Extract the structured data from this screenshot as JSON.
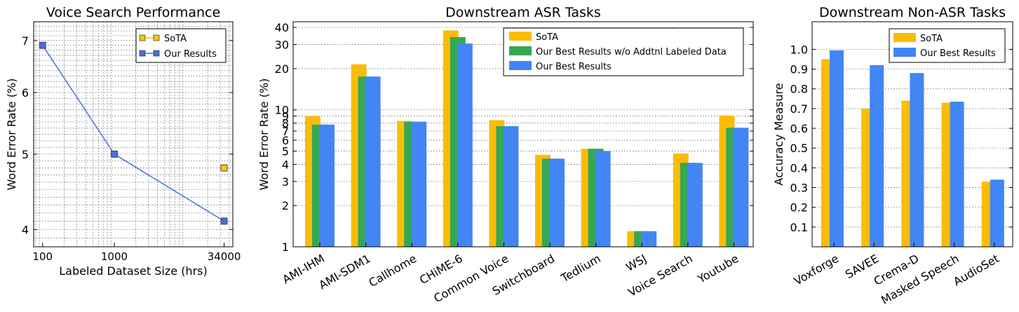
{
  "chart_data": [
    {
      "type": "line",
      "title": "Voice Search Performance",
      "xlabel": "Labeled Dataset Size (hrs)",
      "ylabel": "Word Error Rate (%)",
      "x_scale": "log",
      "y_scale": "log",
      "xlim": [
        75,
        45000
      ],
      "ylim": [
        3.8,
        7.4
      ],
      "xticks": [
        100,
        1000,
        34000
      ],
      "xtick_labels": [
        "100",
        "1000",
        "34000"
      ],
      "yticks": [
        4,
        5,
        6,
        7
      ],
      "ytick_labels": [
        "4",
        "5",
        "6",
        "7"
      ],
      "grid": true,
      "legend_position": "upper right",
      "series": [
        {
          "name": "SoTA",
          "color": "#f5c518",
          "x": [
            34000
          ],
          "y": [
            4.8
          ]
        },
        {
          "name": "Our Results",
          "color": "#4a6fd6",
          "x": [
            100,
            1000,
            34000
          ],
          "y": [
            6.9,
            5.0,
            4.1
          ]
        }
      ]
    },
    {
      "type": "bar",
      "title": "Downstream ASR Tasks",
      "xlabel": "",
      "ylabel": "Word Error Rate (%)",
      "y_scale": "log",
      "ylim": [
        1,
        44
      ],
      "yticks": [
        1,
        2,
        3,
        4,
        5,
        6,
        7,
        8,
        9,
        10,
        20,
        30,
        40
      ],
      "ytick_labels": [
        "1",
        "2",
        "3",
        "4",
        "5",
        "6",
        "7",
        "8",
        "9",
        "10",
        "20",
        "30",
        "40"
      ],
      "grid": true,
      "legend_position": "upper right",
      "categories": [
        "AMI-IHM",
        "AMI-SDM1",
        "Callhome",
        "CHiME-6",
        "Common Voice",
        "Switchboard",
        "Tedlium",
        "WSJ",
        "Voice Search",
        "Youtube"
      ],
      "series": [
        {
          "name": "SoTA",
          "color": "#fbbc05",
          "values": [
            9.0,
            21.5,
            8.3,
            38.0,
            8.4,
            4.7,
            5.2,
            1.3,
            4.8,
            9.1
          ]
        },
        {
          "name": "Our Best Results w/o Addtnl Labeled Data",
          "color": "#34a853",
          "values": [
            7.8,
            17.5,
            8.2,
            34.0,
            7.6,
            4.4,
            5.2,
            1.3,
            4.1,
            7.4
          ]
        },
        {
          "name": "Our Best Results",
          "color": "#4285f4",
          "values": [
            7.8,
            17.5,
            8.2,
            30.5,
            7.6,
            4.4,
            5.0,
            1.3,
            4.1,
            7.4
          ]
        }
      ]
    },
    {
      "type": "bar",
      "title": "Downstream Non-ASR Tasks",
      "xlabel": "",
      "ylabel": "Accuracy Measure",
      "ylim": [
        0,
        1.14
      ],
      "yticks": [
        0.1,
        0.2,
        0.3,
        0.4,
        0.5,
        0.6,
        0.7,
        0.8,
        0.9,
        1.0
      ],
      "ytick_labels": [
        "0.1",
        "0.2",
        "0.3",
        "0.4",
        "0.5",
        "0.6",
        "0.7",
        "0.8",
        "0.9",
        "1.0"
      ],
      "grid": true,
      "legend_position": "upper right",
      "categories": [
        "Voxforge",
        "SAVEE",
        "Crema-D",
        "Masked Speech",
        "AudioSet"
      ],
      "series": [
        {
          "name": "SoTA",
          "color": "#fbbc05",
          "values": [
            0.95,
            0.7,
            0.74,
            0.73,
            0.33
          ]
        },
        {
          "name": "Our Best Results",
          "color": "#4285f4",
          "values": [
            0.995,
            0.92,
            0.88,
            0.735,
            0.34
          ]
        }
      ]
    }
  ]
}
